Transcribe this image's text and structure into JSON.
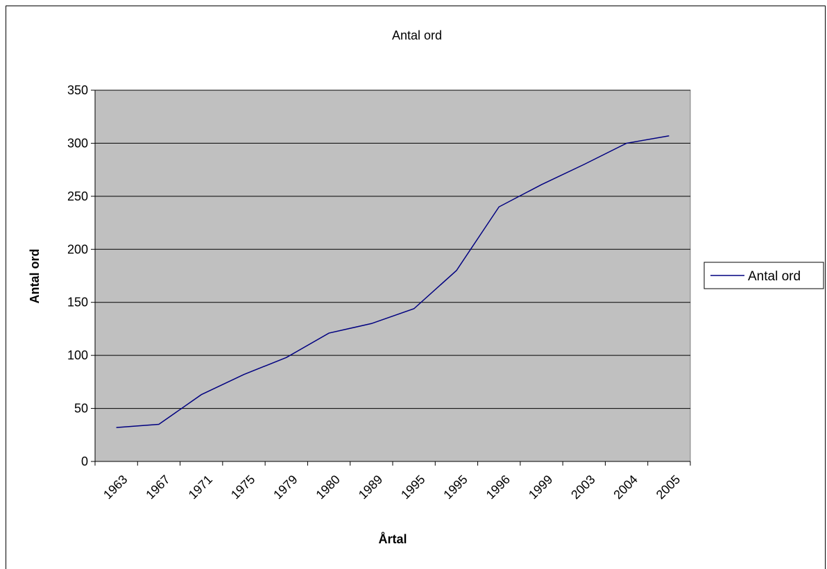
{
  "chart_data": {
    "type": "line",
    "title": "Antal ord",
    "xlabel": "Årtal",
    "ylabel": "Antal ord",
    "categories": [
      "1963",
      "1967",
      "1971",
      "1975",
      "1979",
      "1980",
      "1989",
      "1995",
      "1995",
      "1996",
      "1999",
      "2003",
      "2004",
      "2005"
    ],
    "series": [
      {
        "name": "Antal ord",
        "values": [
          32,
          35,
          63,
          82,
          98,
          121,
          130,
          144,
          180,
          240,
          261,
          280,
          300,
          307
        ],
        "color": "#000080"
      }
    ],
    "ylim": [
      0,
      350
    ],
    "yticks": [
      0,
      50,
      100,
      150,
      200,
      250,
      300,
      350
    ],
    "grid": true,
    "legend": "right",
    "plot_background": "#c0c0c0"
  }
}
